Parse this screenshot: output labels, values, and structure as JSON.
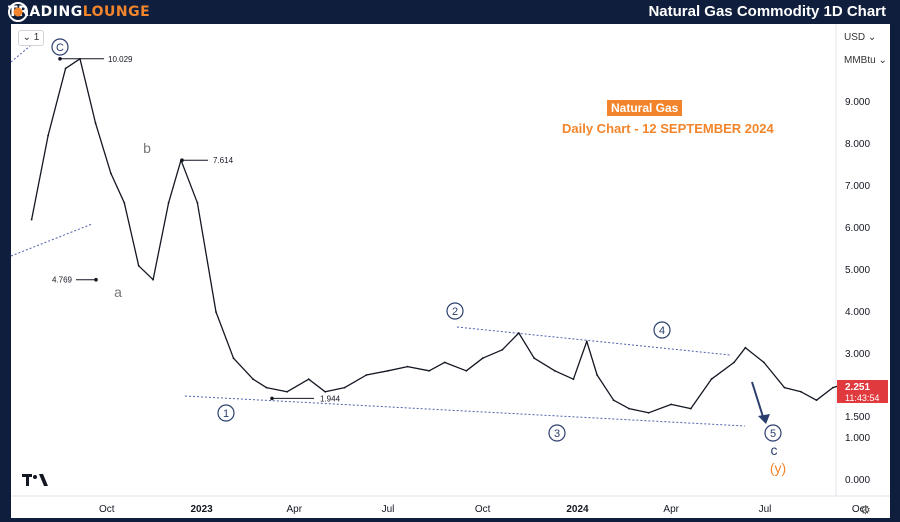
{
  "brand": {
    "name_main": "TRADING",
    "name_accent": "LOUNGE"
  },
  "header": {
    "title": "Natural Gas Commodity 1D Chart"
  },
  "toolbar": {
    "interval_label": "1",
    "currency": "USD",
    "unit": "MMBtu",
    "settings_icon": "gear-icon"
  },
  "annotation": {
    "instrument": "Natural Gas",
    "subtitle": "Daily Chart - 12 SEPTEMBER 2024"
  },
  "colors": {
    "header_bg": "#0f1e3c",
    "accent": "#f2852b",
    "wave": "#2b3f6e",
    "channel": "#5060b0",
    "price_badge": "#e03a3e"
  },
  "chart_data": {
    "type": "line",
    "title": "Natural Gas Commodity 1D Chart",
    "ylim": [
      0,
      10.5
    ],
    "y_ticks": [
      "9.000",
      "8.000",
      "7.000",
      "6.000",
      "5.000",
      "4.000",
      "3.000",
      "1.500",
      "1.000",
      "0.000"
    ],
    "x_ticks": [
      "Oct",
      "2023",
      "Apr",
      "Jul",
      "Oct",
      "2024",
      "Apr",
      "Jul",
      "Oct"
    ],
    "current_price": "2.251",
    "countdown": "11:43:54",
    "series": [
      {
        "x": [
          "2022-07-20",
          "2022-08-05",
          "2022-08-22",
          "2022-09-05",
          "2022-09-20",
          "2022-10-05",
          "2022-10-18",
          "2022-11-01",
          "2022-11-15",
          "2022-11-30",
          "2022-12-12",
          "2022-12-28",
          "2023-01-15",
          "2023-02-01",
          "2023-02-20",
          "2023-03-05",
          "2023-03-25",
          "2023-04-15",
          "2023-05-01",
          "2023-05-20",
          "2023-06-10",
          "2023-07-01",
          "2023-07-20",
          "2023-08-10",
          "2023-08-25",
          "2023-09-15",
          "2023-10-01",
          "2023-10-20",
          "2023-11-05",
          "2023-11-20",
          "2023-12-10",
          "2023-12-28",
          "2024-01-10",
          "2024-01-20",
          "2024-02-05",
          "2024-02-20",
          "2024-03-10",
          "2024-04-01",
          "2024-04-20",
          "2024-05-10",
          "2024-06-01",
          "2024-06-12",
          "2024-06-30",
          "2024-07-20",
          "2024-08-05",
          "2024-08-20",
          "2024-09-05",
          "2024-09-12"
        ],
        "values": [
          6.2,
          8.2,
          9.8,
          10.029,
          8.5,
          7.3,
          6.6,
          5.1,
          4.769,
          6.6,
          7.614,
          6.6,
          4.0,
          2.9,
          2.4,
          2.2,
          2.1,
          2.4,
          2.1,
          2.2,
          2.5,
          2.6,
          2.7,
          2.6,
          2.8,
          2.6,
          2.9,
          3.1,
          3.5,
          2.9,
          2.6,
          2.4,
          3.3,
          2.5,
          1.9,
          1.7,
          1.6,
          1.8,
          1.7,
          2.4,
          2.8,
          3.15,
          2.8,
          2.2,
          2.1,
          1.9,
          2.2,
          2.251
        ]
      }
    ],
    "levels": [
      {
        "label": "10.029",
        "value": 10.029
      },
      {
        "label": "7.614",
        "value": 7.614
      },
      {
        "label": "4.769",
        "value": 4.769
      },
      {
        "label": "1.944",
        "value": 1.944
      }
    ],
    "wave_labels": [
      "C",
      "b",
      "a",
      "1",
      "2",
      "3",
      "4",
      "5",
      "c",
      "(y)"
    ]
  }
}
